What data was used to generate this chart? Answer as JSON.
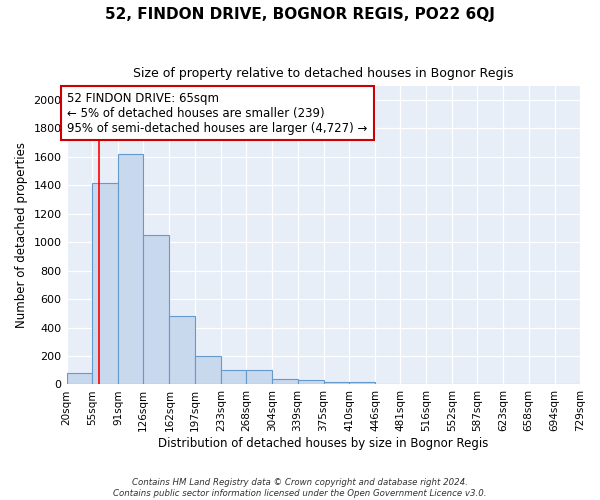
{
  "title": "52, FINDON DRIVE, BOGNOR REGIS, PO22 6QJ",
  "subtitle": "Size of property relative to detached houses in Bognor Regis",
  "xlabel": "Distribution of detached houses by size in Bognor Regis",
  "ylabel": "Number of detached properties",
  "footer_line1": "Contains HM Land Registry data © Crown copyright and database right 2024.",
  "footer_line2": "Contains public sector information licensed under the Open Government Licence v3.0.",
  "bin_labels": [
    "20sqm",
    "55sqm",
    "91sqm",
    "126sqm",
    "162sqm",
    "197sqm",
    "233sqm",
    "268sqm",
    "304sqm",
    "339sqm",
    "375sqm",
    "410sqm",
    "446sqm",
    "481sqm",
    "516sqm",
    "552sqm",
    "587sqm",
    "623sqm",
    "658sqm",
    "694sqm",
    "729sqm"
  ],
  "bin_edges": [
    20,
    55,
    91,
    126,
    162,
    197,
    233,
    268,
    304,
    339,
    375,
    410,
    446,
    481,
    516,
    552,
    587,
    623,
    658,
    694,
    729
  ],
  "bar_heights": [
    80,
    1420,
    1620,
    1050,
    480,
    200,
    100,
    100,
    40,
    30,
    20,
    15,
    0,
    0,
    0,
    0,
    0,
    0,
    0,
    0,
    0
  ],
  "bar_color": "#c8d8ed",
  "bar_edge_color": "#6699cc",
  "fig_bg": "#ffffff",
  "ax_bg": "#e8eef8",
  "grid_color": "#ffffff",
  "red_line_x": 65,
  "annotation_line1": "52 FINDON DRIVE: 65sqm",
  "annotation_line2": "← 5% of detached houses are smaller (239)",
  "annotation_line3": "95% of semi-detached houses are larger (4,727) →",
  "annotation_box_facecolor": "#ffffff",
  "annotation_box_edgecolor": "#cc0000",
  "ylim_max": 2100,
  "yticks": [
    0,
    200,
    400,
    600,
    800,
    1000,
    1200,
    1400,
    1600,
    1800,
    2000
  ]
}
